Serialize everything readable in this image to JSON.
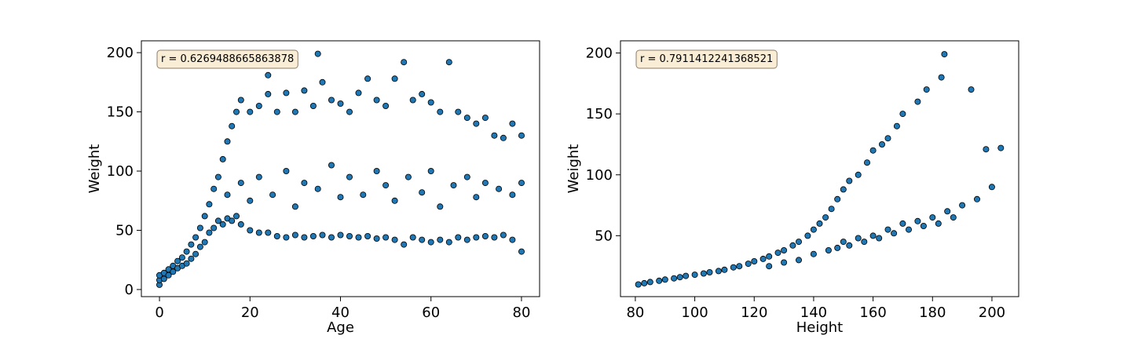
{
  "colors": {
    "point_fill": "#1f77b4",
    "point_edge": "#000000",
    "annotation_fill": "#f5deb3",
    "annotation_edge": "#8c7e6a"
  },
  "chart_data": [
    {
      "type": "scatter",
      "title": "",
      "xlabel": "Age",
      "ylabel": "Weight",
      "xlim": [
        -4,
        84
      ],
      "ylim": [
        -6,
        210
      ],
      "xticks": [
        0,
        20,
        40,
        60,
        80
      ],
      "yticks": [
        0,
        50,
        100,
        150,
        200
      ],
      "grid": false,
      "annotation": "r = 0.6269488665863878",
      "series": [
        {
          "points": [
            [
              0,
              4
            ],
            [
              0,
              8
            ],
            [
              0,
              12
            ],
            [
              1,
              9
            ],
            [
              1,
              14
            ],
            [
              2,
              12
            ],
            [
              2,
              17
            ],
            [
              3,
              15
            ],
            [
              3,
              20
            ],
            [
              4,
              18
            ],
            [
              4,
              24
            ],
            [
              5,
              20
            ],
            [
              5,
              27
            ],
            [
              6,
              22
            ],
            [
              6,
              32
            ],
            [
              7,
              26
            ],
            [
              7,
              38
            ],
            [
              8,
              30
            ],
            [
              8,
              44
            ],
            [
              9,
              36
            ],
            [
              9,
              52
            ],
            [
              10,
              40
            ],
            [
              10,
              62
            ],
            [
              11,
              48
            ],
            [
              11,
              72
            ],
            [
              12,
              52
            ],
            [
              12,
              85
            ],
            [
              13,
              58
            ],
            [
              13,
              95
            ],
            [
              14,
              55
            ],
            [
              14,
              110
            ],
            [
              15,
              60
            ],
            [
              15,
              125
            ],
            [
              16,
              58
            ],
            [
              16,
              138
            ],
            [
              17,
              62
            ],
            [
              17,
              150
            ],
            [
              18,
              55
            ],
            [
              18,
              160
            ],
            [
              20,
              50
            ],
            [
              20,
              150
            ],
            [
              22,
              48
            ],
            [
              22,
              155
            ],
            [
              24,
              48
            ],
            [
              24,
              165
            ],
            [
              24,
              181
            ],
            [
              26,
              45
            ],
            [
              26,
              150
            ],
            [
              28,
              44
            ],
            [
              28,
              166
            ],
            [
              30,
              46
            ],
            [
              30,
              150
            ],
            [
              32,
              44
            ],
            [
              32,
              168
            ],
            [
              34,
              45
            ],
            [
              34,
              155
            ],
            [
              35,
              199
            ],
            [
              36,
              46
            ],
            [
              36,
              175
            ],
            [
              38,
              44
            ],
            [
              38,
              160
            ],
            [
              40,
              46
            ],
            [
              40,
              157
            ],
            [
              42,
              45
            ],
            [
              42,
              150
            ],
            [
              44,
              44
            ],
            [
              44,
              166
            ],
            [
              46,
              45
            ],
            [
              46,
              178
            ],
            [
              48,
              43
            ],
            [
              48,
              160
            ],
            [
              50,
              44
            ],
            [
              50,
              155
            ],
            [
              52,
              42
            ],
            [
              52,
              178
            ],
            [
              54,
              38
            ],
            [
              54,
              192
            ],
            [
              56,
              44
            ],
            [
              56,
              160
            ],
            [
              58,
              42
            ],
            [
              58,
              165
            ],
            [
              60,
              40
            ],
            [
              60,
              158
            ],
            [
              62,
              42
            ],
            [
              62,
              150
            ],
            [
              64,
              40
            ],
            [
              64,
              192
            ],
            [
              66,
              44
            ],
            [
              66,
              150
            ],
            [
              68,
              42
            ],
            [
              68,
              145
            ],
            [
              70,
              44
            ],
            [
              70,
              140
            ],
            [
              72,
              45
            ],
            [
              72,
              145
            ],
            [
              74,
              44
            ],
            [
              74,
              130
            ],
            [
              76,
              46
            ],
            [
              76,
              128
            ],
            [
              78,
              42
            ],
            [
              78,
              140
            ],
            [
              80,
              32
            ],
            [
              80,
              130
            ],
            [
              15,
              80
            ],
            [
              18,
              90
            ],
            [
              20,
              75
            ],
            [
              22,
              95
            ],
            [
              25,
              80
            ],
            [
              28,
              100
            ],
            [
              30,
              70
            ],
            [
              32,
              90
            ],
            [
              35,
              85
            ],
            [
              38,
              105
            ],
            [
              40,
              78
            ],
            [
              42,
              95
            ],
            [
              45,
              80
            ],
            [
              48,
              100
            ],
            [
              50,
              88
            ],
            [
              52,
              75
            ],
            [
              55,
              95
            ],
            [
              58,
              82
            ],
            [
              60,
              100
            ],
            [
              62,
              70
            ],
            [
              65,
              88
            ],
            [
              68,
              95
            ],
            [
              70,
              78
            ],
            [
              72,
              90
            ],
            [
              75,
              85
            ],
            [
              78,
              80
            ],
            [
              80,
              90
            ]
          ]
        }
      ]
    },
    {
      "type": "scatter",
      "title": "",
      "xlabel": "Height",
      "ylabel": "Weight",
      "xlim": [
        75,
        209
      ],
      "ylim": [
        0,
        210
      ],
      "xticks": [
        80,
        100,
        120,
        140,
        160,
        180,
        200
      ],
      "yticks": [
        50,
        100,
        150,
        200
      ],
      "grid": false,
      "annotation": "r = 0.7911412241368521",
      "series": [
        {
          "points": [
            [
              81,
              10
            ],
            [
              83,
              11
            ],
            [
              85,
              12
            ],
            [
              88,
              13
            ],
            [
              90,
              14
            ],
            [
              93,
              15
            ],
            [
              95,
              16
            ],
            [
              97,
              17
            ],
            [
              100,
              18
            ],
            [
              103,
              19
            ],
            [
              105,
              20
            ],
            [
              108,
              21
            ],
            [
              110,
              22
            ],
            [
              113,
              24
            ],
            [
              115,
              25
            ],
            [
              118,
              27
            ],
            [
              120,
              29
            ],
            [
              123,
              31
            ],
            [
              125,
              33
            ],
            [
              128,
              36
            ],
            [
              130,
              38
            ],
            [
              133,
              42
            ],
            [
              135,
              45
            ],
            [
              138,
              50
            ],
            [
              140,
              55
            ],
            [
              142,
              60
            ],
            [
              144,
              65
            ],
            [
              146,
              72
            ],
            [
              148,
              80
            ],
            [
              150,
              88
            ],
            [
              152,
              95
            ],
            [
              155,
              100
            ],
            [
              158,
              110
            ],
            [
              160,
              120
            ],
            [
              163,
              125
            ],
            [
              165,
              130
            ],
            [
              168,
              140
            ],
            [
              170,
              150
            ],
            [
              175,
              160
            ],
            [
              178,
              170
            ],
            [
              183,
              180
            ],
            [
              184,
              199
            ],
            [
              193,
              170
            ],
            [
              198,
              121
            ],
            [
              200,
              90
            ],
            [
              203,
              122
            ],
            [
              150,
              45
            ],
            [
              155,
              48
            ],
            [
              160,
              50
            ],
            [
              165,
              55
            ],
            [
              170,
              60
            ],
            [
              175,
              62
            ],
            [
              180,
              65
            ],
            [
              185,
              70
            ],
            [
              190,
              75
            ],
            [
              195,
              80
            ],
            [
              148,
              40
            ],
            [
              152,
              42
            ],
            [
              157,
              45
            ],
            [
              162,
              48
            ],
            [
              167,
              52
            ],
            [
              172,
              55
            ],
            [
              177,
              58
            ],
            [
              182,
              60
            ],
            [
              187,
              65
            ],
            [
              140,
              35
            ],
            [
              145,
              38
            ],
            [
              135,
              30
            ],
            [
              130,
              28
            ],
            [
              125,
              25
            ]
          ]
        }
      ]
    }
  ]
}
